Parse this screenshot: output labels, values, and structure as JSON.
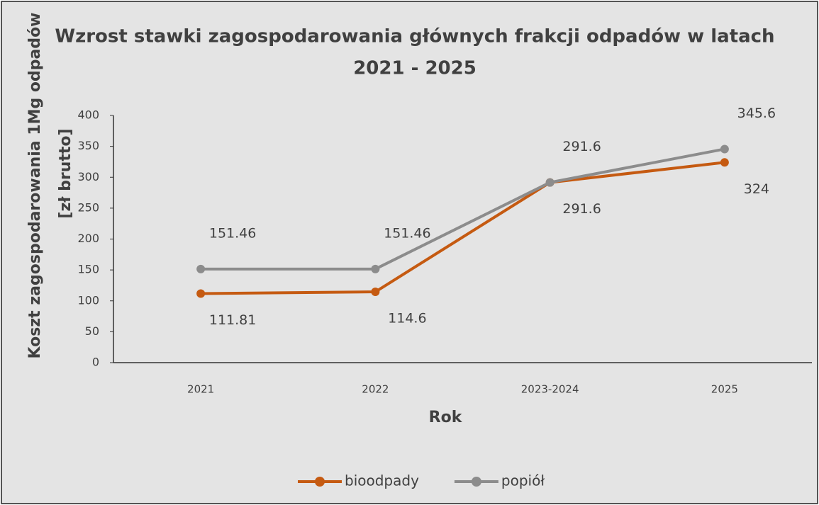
{
  "chart_data": {
    "type": "line",
    "title": [
      "Wzrost stawki zagospodarowania głównych frakcji odpadów w latach",
      "2021 - 2025"
    ],
    "y_label": [
      "Koszt zagospodarowania 1Mg odpadów",
      "[zł brutto]"
    ],
    "x_label": "Rok",
    "categories": [
      "2021",
      "2022",
      "2023-2024",
      "2025"
    ],
    "series": [
      {
        "name": "bioodpady",
        "color": "#c55a11",
        "values": [
          111.81,
          114.6,
          291.6,
          324
        ]
      },
      {
        "name": "popiół",
        "color": "#8c8c8c",
        "values": [
          151.46,
          151.46,
          291.6,
          345.6
        ]
      }
    ],
    "ylim": [
      0,
      400
    ],
    "yticks": [
      0,
      50,
      100,
      150,
      200,
      250,
      300,
      350,
      400
    ],
    "grid": false,
    "legend": "bottom"
  }
}
